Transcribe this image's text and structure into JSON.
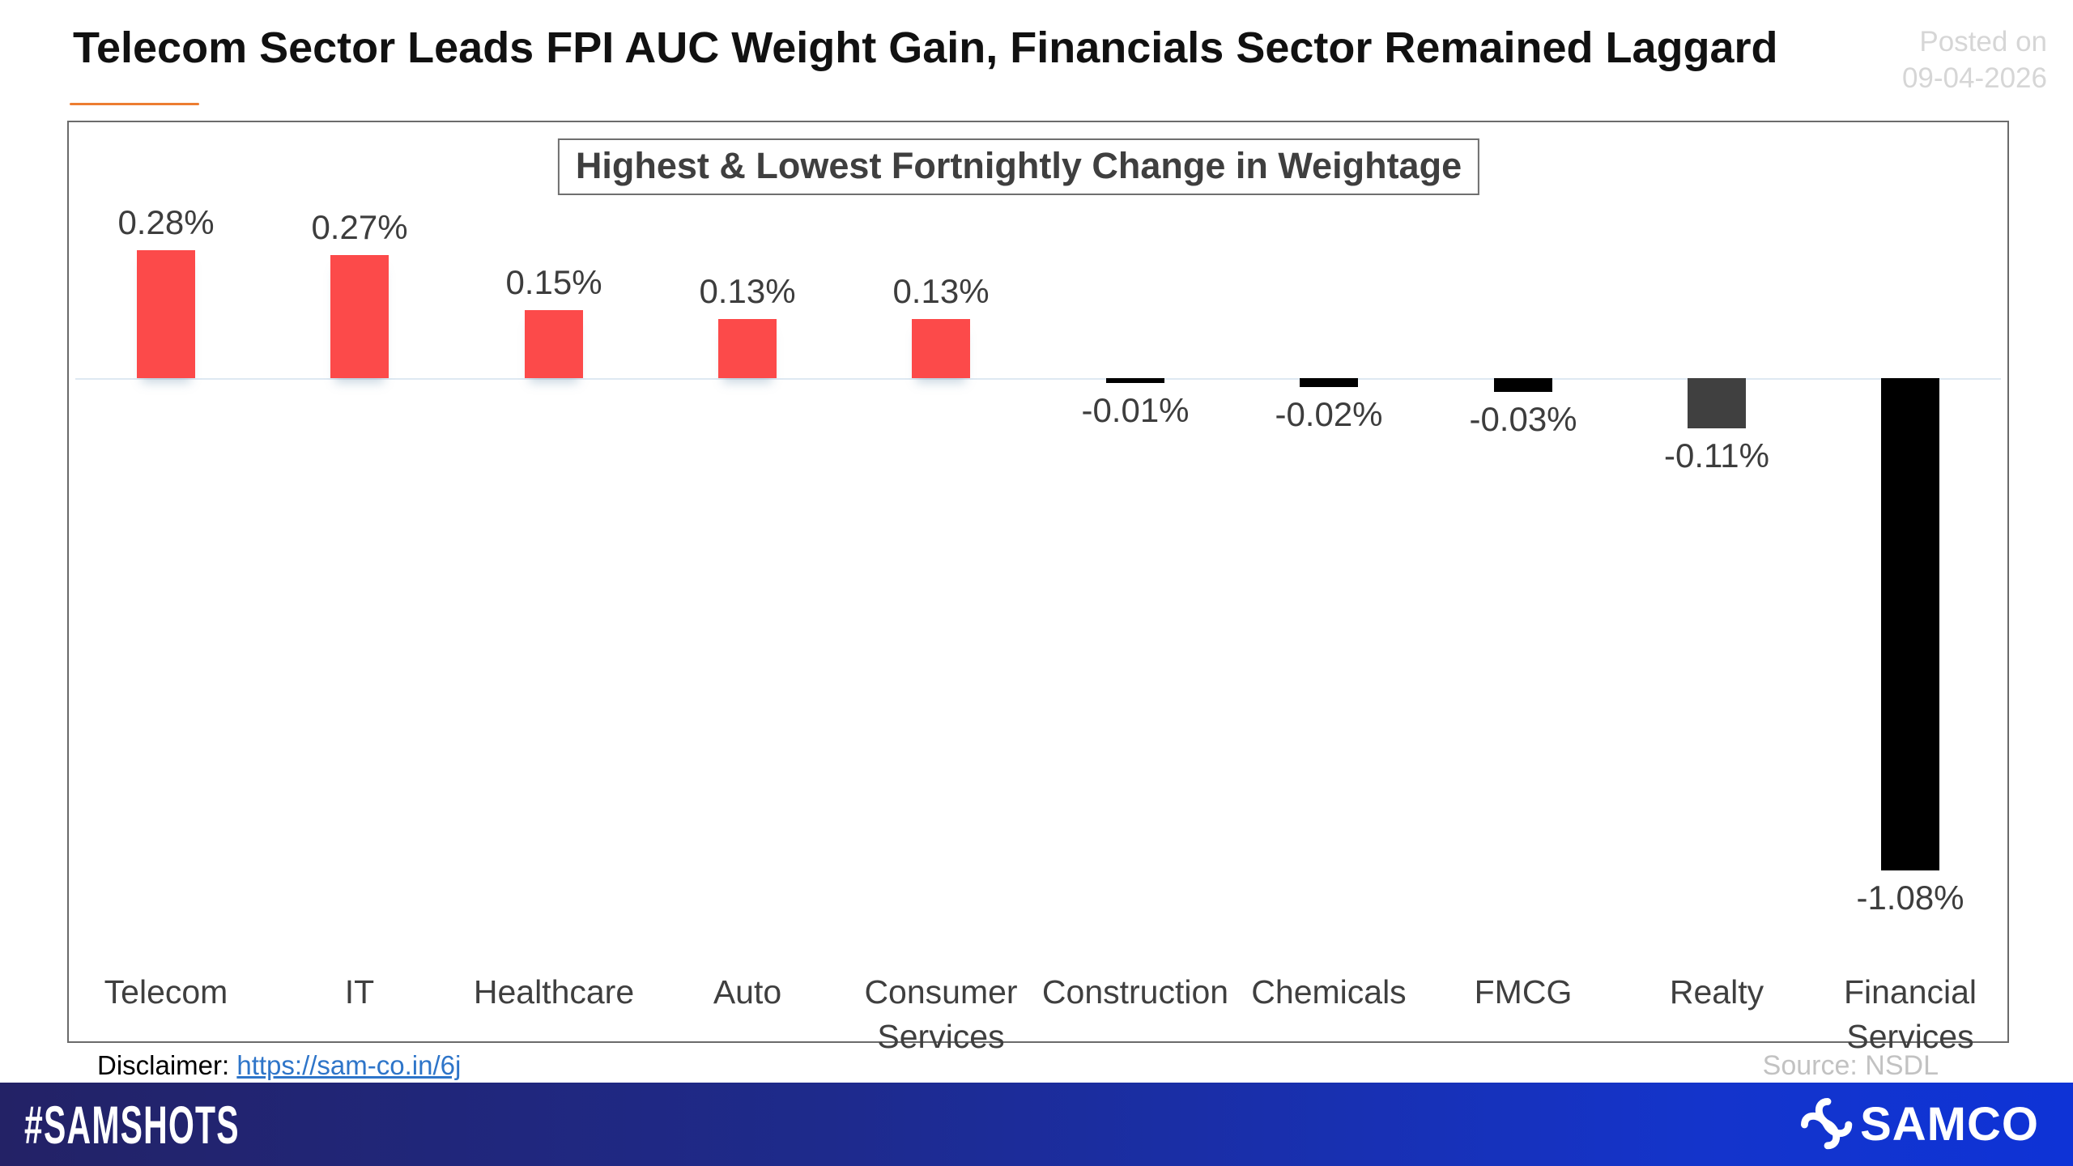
{
  "header": {
    "title": "Telecom Sector Leads FPI AUC Weight Gain, Financials Sector Remained Laggard",
    "posted_on_label": "Posted on",
    "posted_on_date": "09-04-2026"
  },
  "chart_data": {
    "type": "bar",
    "title": "Highest & Lowest Fortnightly Change in Weightage",
    "categories": [
      "Telecom",
      "IT",
      "Healthcare",
      "Auto",
      "Consumer Services",
      "Construction",
      "Chemicals",
      "FMCG",
      "Realty",
      "Financial Services"
    ],
    "values": [
      0.28,
      0.27,
      0.15,
      0.13,
      0.13,
      -0.01,
      -0.02,
      -0.03,
      -0.11,
      -1.08
    ],
    "value_labels": [
      "0.28%",
      "0.27%",
      "0.15%",
      "0.13%",
      "0.13%",
      "-0.01%",
      "-0.02%",
      "-0.03%",
      "-0.11%",
      "-1.08%"
    ],
    "bar_colors": [
      "#FC4A4A",
      "#FC4A4A",
      "#FC4A4A",
      "#FC4A4A",
      "#FC4A4A",
      "#000000",
      "#000000",
      "#000000",
      "#404040",
      "#000000"
    ],
    "xlabel": "",
    "ylabel": "",
    "ylim": [
      -1.2,
      0.45
    ],
    "grid": "off",
    "legend": "none"
  },
  "footnotes": {
    "disclaimer_label": "Disclaimer:",
    "disclaimer_link_text": "https://sam-co.in/6j",
    "source": "Source: NSDL"
  },
  "footer": {
    "hashtag": "#SAMSHOTS",
    "brand": "SAMCO"
  },
  "colors": {
    "positive_bar": "#FC4A4A",
    "negative_bar_black": "#000000",
    "negative_bar_gray": "#404040",
    "title_underline": "#ED7D31",
    "zero_line": "#DEE9F2",
    "link_blue": "#2E75C9",
    "posted_on_gray": "#D6D6D6",
    "source_gray": "#C2C2C2",
    "footer_gradient_left": "#232266",
    "footer_gradient_right": "#0E33D6"
  }
}
